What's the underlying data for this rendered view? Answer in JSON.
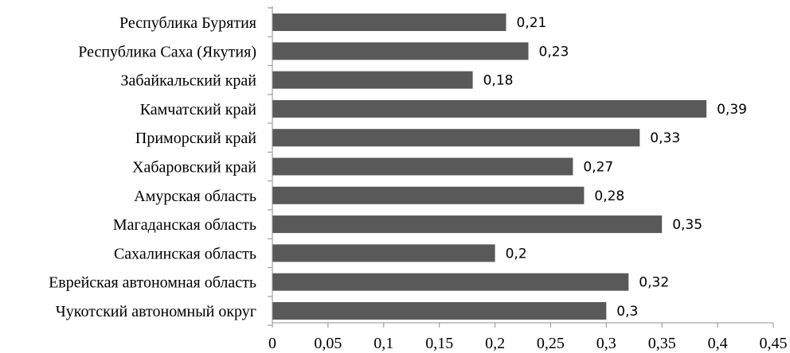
{
  "chart_data": {
    "type": "bar",
    "orientation": "horizontal",
    "categories": [
      "Республика Бурятия",
      "Республика Саха (Якутия)",
      "Забайкальский край",
      "Камчатский край",
      "Приморский край",
      "Хабаровский край",
      "Амурская область",
      "Магаданская область",
      "Сахалинская область",
      "Еврейская автономная область",
      "Чукотский автономный округ"
    ],
    "values": [
      0.21,
      0.23,
      0.18,
      0.39,
      0.33,
      0.27,
      0.28,
      0.35,
      0.2,
      0.32,
      0.3
    ],
    "value_labels": [
      "0,21",
      "0,23",
      "0,18",
      "0,39",
      "0,33",
      "0,27",
      "0,28",
      "0,35",
      "0,2",
      "0,32",
      "0,3"
    ],
    "xlim": [
      0,
      0.45
    ],
    "x_ticks": [
      0,
      0.05,
      0.1,
      0.15,
      0.2,
      0.25,
      0.3,
      0.35,
      0.4,
      0.45
    ],
    "x_tick_labels": [
      "0",
      "0,05",
      "0,1",
      "0,15",
      "0,2",
      "0,25",
      "0,3",
      "0,35",
      "0,4",
      "0,45"
    ],
    "title": "",
    "xlabel": "",
    "ylabel": "",
    "grid": false,
    "legend": "none",
    "bar_color": "#595959",
    "axis_color": "#8c8c8c"
  }
}
